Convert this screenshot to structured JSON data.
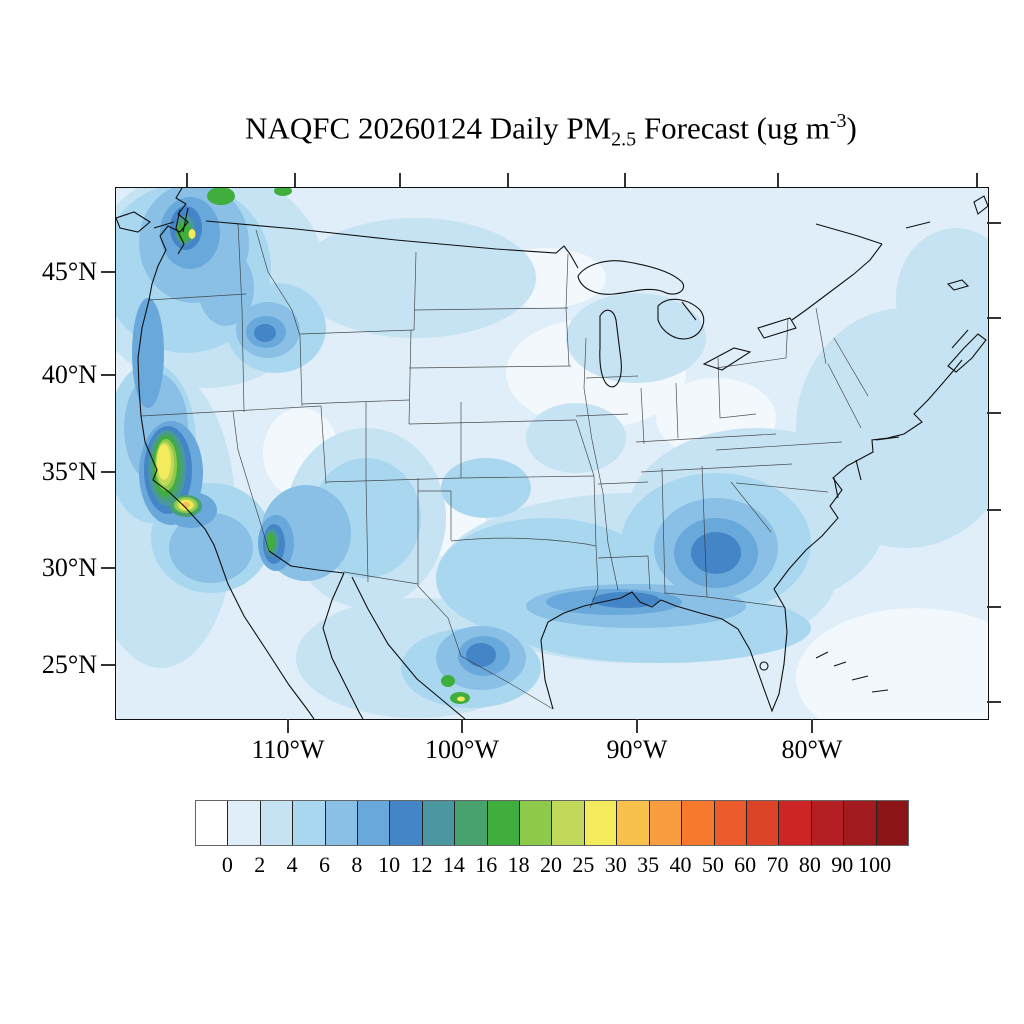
{
  "title": {
    "text_prefix": "NAQFC 20260124 Daily PM",
    "subscript": "2.5",
    "text_mid": " Forecast (ug m",
    "superscript": "-3",
    "text_suffix": ")"
  },
  "axes": {
    "lat_labels": [
      "45°N",
      "40°N",
      "35°N",
      "30°N",
      "25°N"
    ],
    "lon_labels": [
      "110°W",
      "100°W",
      "90°W",
      "80°W"
    ]
  },
  "colorbar": {
    "tick_labels": [
      "0",
      "2",
      "4",
      "6",
      "8",
      "10",
      "12",
      "14",
      "16",
      "18",
      "20",
      "25",
      "30",
      "35",
      "40",
      "50",
      "60",
      "70",
      "80",
      "90",
      "100"
    ],
    "cell_colors": [
      "#FFFFFF",
      "#DFEEF8",
      "#C6E3F4",
      "#A9D7F0",
      "#8AC0E5",
      "#69A8DA",
      "#4485C7",
      "#4A97A2",
      "#47A26E",
      "#3FAE3C",
      "#8FC94C",
      "#C1D95A",
      "#F3EA5C",
      "#F8C14C",
      "#F89E40",
      "#F7792E",
      "#EB5B2C",
      "#DD4327",
      "#CD2424",
      "#B41F24",
      "#A21B1E",
      "#8B1416"
    ]
  },
  "chart_data": {
    "type": "heatmap",
    "title": "NAQFC 20260124 Daily PM2.5 Forecast (ug m-3)",
    "units": "ug m-3",
    "region": "Contiguous United States with southern Canada, northern Mexico and adjacent oceans",
    "x_tick_labels": [
      "110°W",
      "100°W",
      "90°W",
      "80°W"
    ],
    "y_tick_labels": [
      "45°N",
      "40°N",
      "35°N",
      "30°N",
      "25°N"
    ],
    "levels": [
      0,
      2,
      4,
      6,
      8,
      10,
      12,
      14,
      16,
      18,
      20,
      25,
      30,
      35,
      40,
      50,
      60,
      70,
      80,
      90,
      100
    ],
    "palette": [
      "#FFFFFF",
      "#DFEEF8",
      "#C6E3F4",
      "#A9D7F0",
      "#8AC0E5",
      "#69A8DA",
      "#4485C7",
      "#4A97A2",
      "#47A26E",
      "#3FAE3C",
      "#8FC94C",
      "#C1D95A",
      "#F3EA5C",
      "#F8C14C",
      "#F89E40",
      "#F7792E",
      "#EB5B2C",
      "#DD4327",
      "#CD2424",
      "#B41F24",
      "#A21B1E",
      "#8B1416"
    ],
    "legend_position": "bottom",
    "grid": false,
    "features": [
      {
        "area": "California Central Valley",
        "approx_value_ug_m3": "20-30"
      },
      {
        "area": "Los Angeles basin",
        "approx_value_ug_m3": "30-35"
      },
      {
        "area": "Puget Sound / Seattle",
        "approx_value_ug_m3": "16-30"
      },
      {
        "area": "North Cascades (WA)",
        "approx_value_ug_m3": "14-18"
      },
      {
        "area": "Georgia / Alabama southeast plume",
        "approx_value_ug_m3": "8-12"
      },
      {
        "area": "Louisiana Gulf Coast strip",
        "approx_value_ug_m3": "8-12"
      },
      {
        "area": "Southern Idaho valley",
        "approx_value_ug_m3": "10-14"
      },
      {
        "area": "Lower Colorado River (CA/AZ)",
        "approx_value_ug_m3": "12-18"
      },
      {
        "area": "Monterrey area, northeast Mexico",
        "approx_value_ug_m3": "16-30"
      },
      {
        "area": "Central and eastern Texas",
        "approx_value_ug_m3": "4-8"
      },
      {
        "area": "Great Plains / Midwest background",
        "approx_value_ug_m3": "0-4"
      },
      {
        "area": "Open ocean background",
        "approx_value_ug_m3": "0-4"
      }
    ]
  }
}
